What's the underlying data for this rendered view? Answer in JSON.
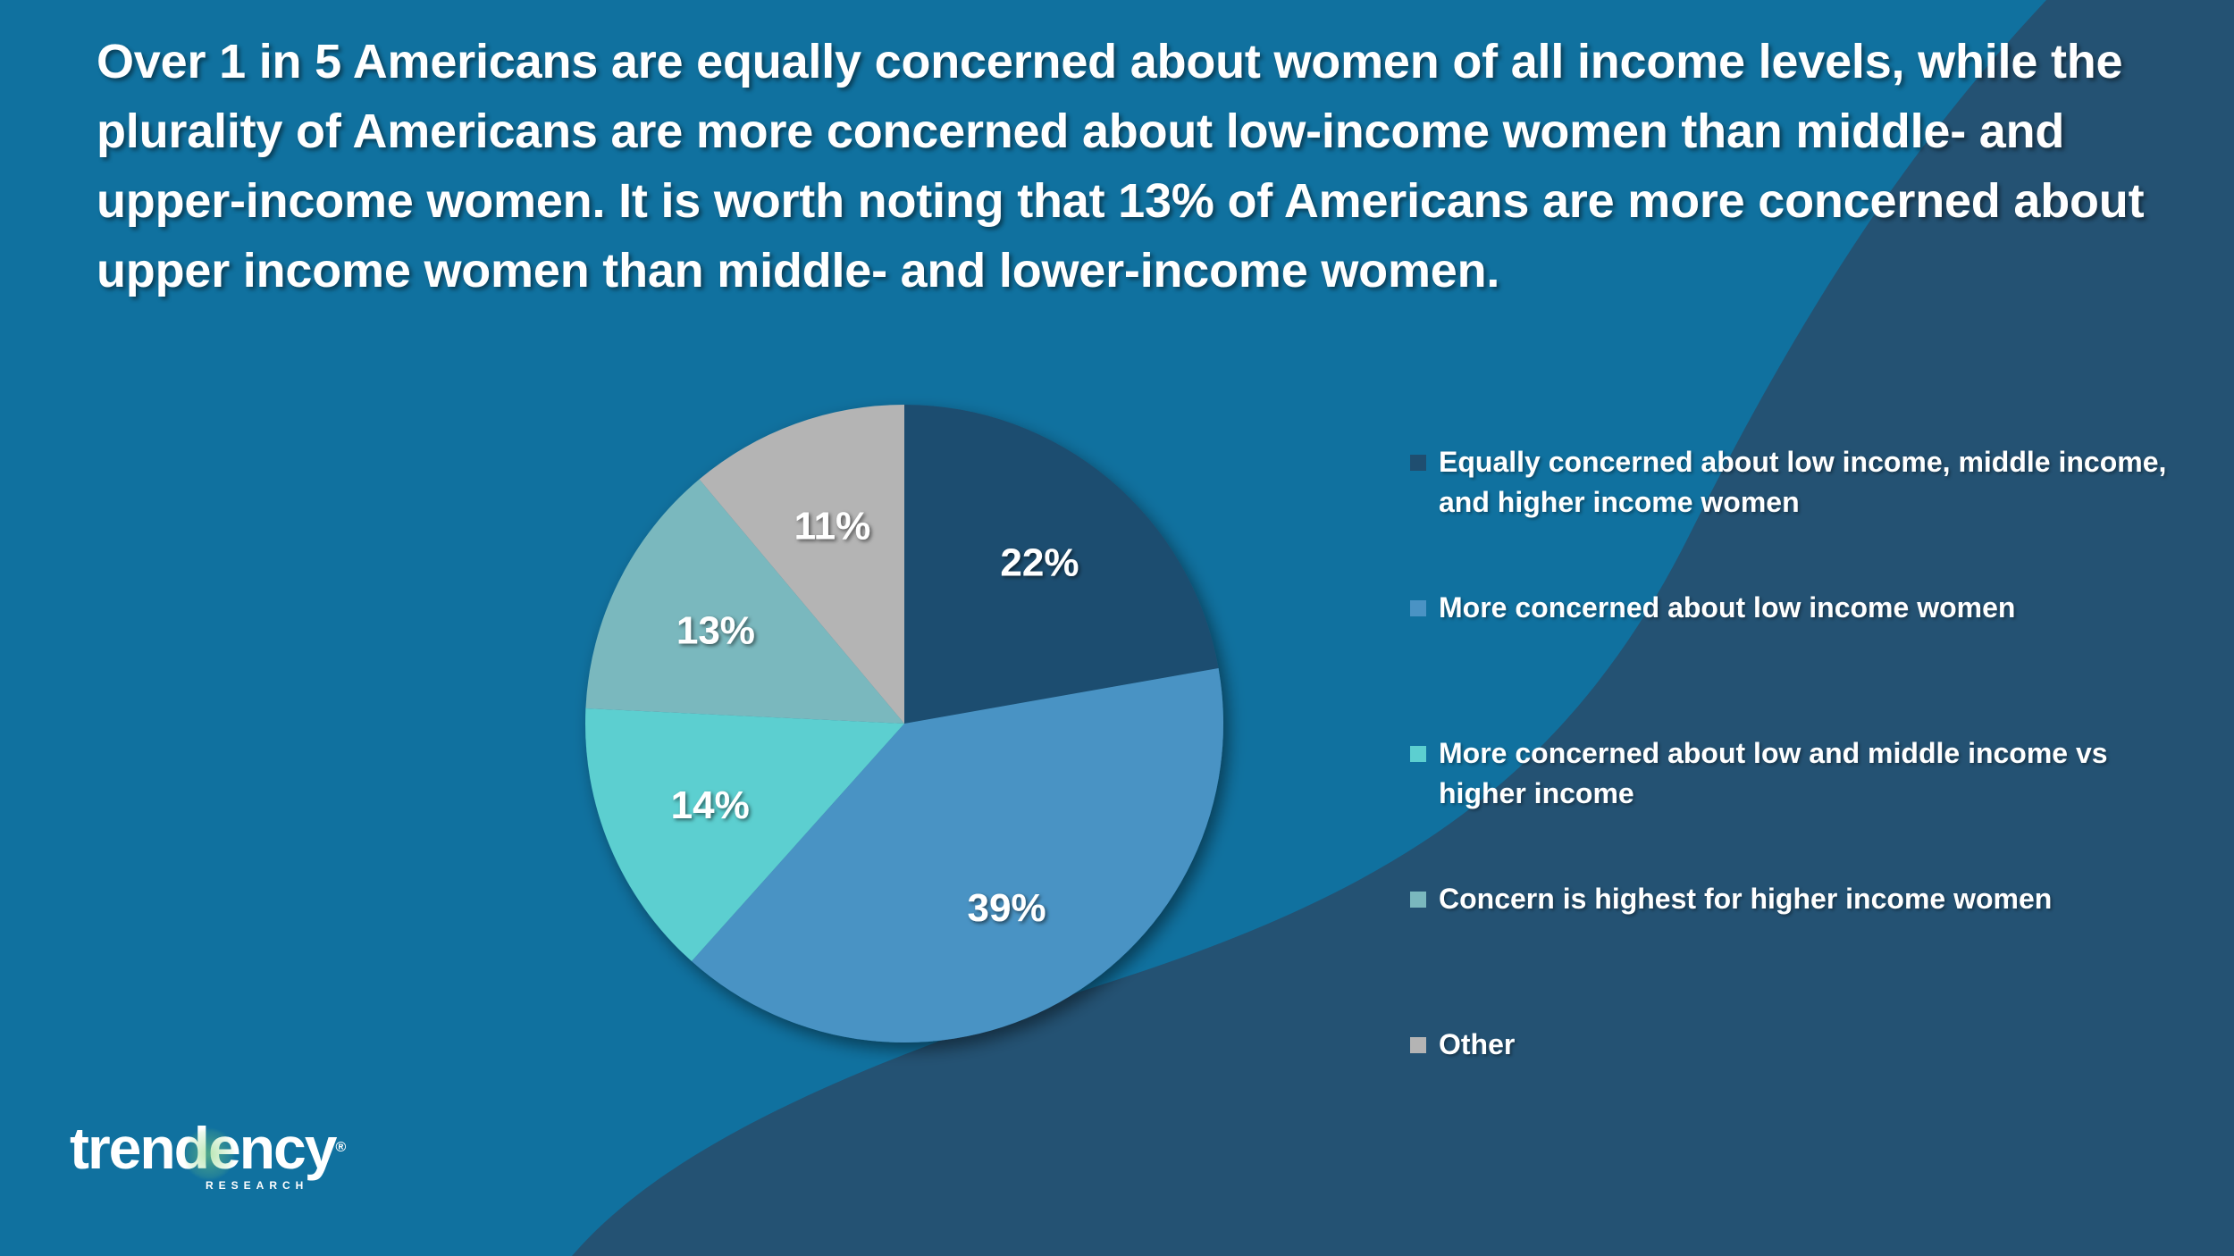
{
  "slide": {
    "title": "Over 1 in 5 Americans are equally concerned about women of all income levels, while the plurality of Americans are more concerned about low-income women than middle- and upper-income women. It is worth noting that 13% of Americans are more concerned about upper income women than middle- and lower-income women."
  },
  "colors": {
    "background": "#10719f",
    "background_dark": "#245273"
  },
  "chart_data": {
    "type": "pie",
    "title": "",
    "start_angle_deg": 0,
    "direction": "clockwise",
    "categories": [
      "Equally concerned about low income, middle income, and higher income women",
      "More concerned about low income women",
      "More concerned about low and middle income vs higher income",
      "Concern is highest for higher income women",
      "Other"
    ],
    "values": [
      22,
      39,
      14,
      13,
      11
    ],
    "data_labels": [
      "22%",
      "39%",
      "14%",
      "13%",
      "11%"
    ],
    "colors": [
      "#1f4e70",
      "#4a93c4",
      "#5ccfd0",
      "#7ab8be",
      "#b4b4b4"
    ],
    "legend_position": "right"
  },
  "logo": {
    "name": "trendency",
    "registered": "®",
    "subtitle": "RESEARCH"
  }
}
